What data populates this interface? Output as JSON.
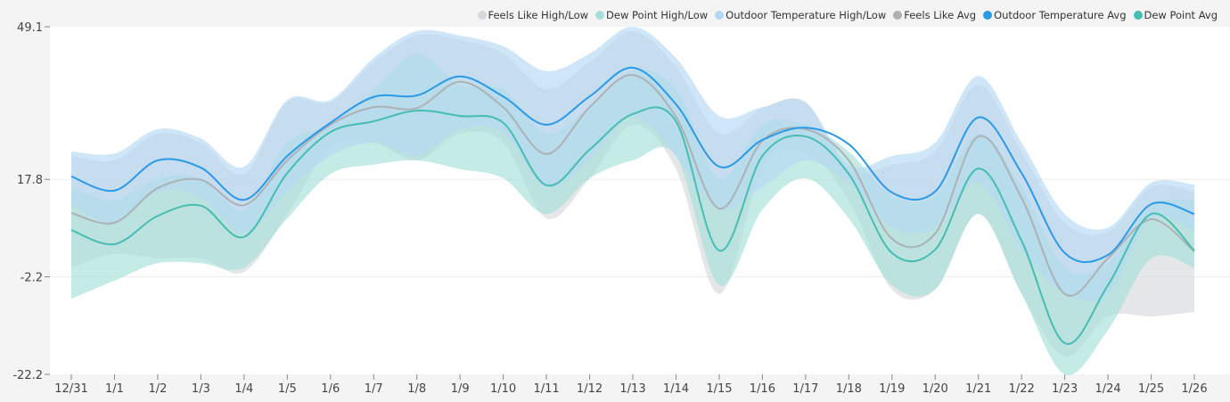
{
  "chart_data": {
    "type": "area",
    "title": "",
    "xlabel": "",
    "ylabel": "",
    "ylim": [
      -22.2,
      49.1
    ],
    "yticks": [
      "49.1",
      "17.8",
      "-2.2",
      "-22.2"
    ],
    "ytick_values": [
      49.1,
      17.8,
      -2.2,
      -22.2
    ],
    "grid": true,
    "legend_position": "top-right",
    "categories": [
      "12/31",
      "1/1",
      "1/2",
      "1/3",
      "1/4",
      "1/5",
      "1/6",
      "1/7",
      "1/8",
      "1/9",
      "1/10",
      "1/11",
      "1/12",
      "1/13",
      "1/14",
      "1/15",
      "1/16",
      "1/17",
      "1/18",
      "1/19",
      "1/20",
      "1/21",
      "1/22",
      "1/23",
      "1/24",
      "1/25",
      "1/26"
    ],
    "bands": [
      {
        "name": "Feels Like High/Low",
        "color": "#d5d8dc",
        "high": [
          22.6,
          21.7,
          27.2,
          25.3,
          19.0,
          33.6,
          33.6,
          41.8,
          47.3,
          46.4,
          43.6,
          36.3,
          41.8,
          48.2,
          40.9,
          27.2,
          32.4,
          33.6,
          19.9,
          20.8,
          23.5,
          37.2,
          23.5,
          8.9,
          7.0,
          16.2,
          15.3
        ],
        "low": [
          -0.3,
          2.5,
          1.6,
          1.6,
          -1.2,
          10.7,
          24.4,
          25.3,
          21.7,
          27.2,
          25.3,
          9.8,
          18.0,
          29.0,
          19.9,
          -5.7,
          19.9,
          23.5,
          13.5,
          -4.8,
          -4.8,
          10.7,
          -5.7,
          -18.5,
          -10.3,
          -10.3,
          -9.4
        ]
      },
      {
        "name": "Dew Point High/Low",
        "color": "#a6e0da",
        "high": [
          16.2,
          13.5,
          18.0,
          18.0,
          11.6,
          25.3,
          29.0,
          36.3,
          43.6,
          37.2,
          36.3,
          27.2,
          32.6,
          40.0,
          36.3,
          18.0,
          29.0,
          29.0,
          23.5,
          14.4,
          14.4,
          27.2,
          16.2,
          -0.3,
          0.6,
          12.5,
          13.5
        ],
        "low": [
          -6.7,
          -3.0,
          0.6,
          0.6,
          -0.3,
          9.8,
          18.9,
          20.8,
          21.7,
          19.9,
          18.0,
          10.7,
          18.0,
          21.7,
          22.6,
          -3.9,
          11.6,
          18.0,
          9.8,
          -3.9,
          -4.8,
          10.7,
          -5.7,
          -22.2,
          -13.1,
          1.6,
          -0.3
        ]
      },
      {
        "name": "Outdoor Temperature High/Low",
        "color": "#b3d8f2",
        "high": [
          23.5,
          23.1,
          28.1,
          26.2,
          20.4,
          34.1,
          34.1,
          42.7,
          48.2,
          47.3,
          45.1,
          40.0,
          43.6,
          49.1,
          42.7,
          30.8,
          32.6,
          33.6,
          20.8,
          22.6,
          25.3,
          39.0,
          25.3,
          10.7,
          7.9,
          17.1,
          16.7
        ],
        "low": [
          12.5,
          8.9,
          15.3,
          14.0,
          6.7,
          15.3,
          22.6,
          25.3,
          22.6,
          28.1,
          27.2,
          16.2,
          21.7,
          30.8,
          22.6,
          11.6,
          16.2,
          21.7,
          17.1,
          7.9,
          7.9,
          17.1,
          3.4,
          -5.7,
          -5.7,
          9.8,
          7.0
        ]
      }
    ],
    "series": [
      {
        "name": "Feels Like Avg",
        "color": "#adb1b6",
        "values": [
          10.9,
          8.9,
          16.0,
          17.7,
          12.5,
          21.7,
          29.0,
          32.6,
          32.4,
          37.8,
          32.6,
          23.0,
          32.6,
          39.2,
          30.6,
          11.8,
          25.7,
          28.1,
          21.7,
          5.6,
          6.7,
          26.6,
          14.0,
          -5.7,
          1.6,
          9.6,
          3.0
        ]
      },
      {
        "name": "Outdoor Temperature Avg",
        "color": "#2b9ae6",
        "values": [
          18.4,
          15.5,
          21.7,
          20.2,
          13.6,
          22.6,
          29.4,
          34.7,
          35.0,
          38.9,
          34.8,
          29.0,
          34.8,
          40.7,
          33.2,
          20.4,
          25.9,
          28.4,
          25.0,
          15.1,
          15.3,
          30.5,
          19.1,
          2.7,
          2.3,
          12.7,
          10.7
        ]
      },
      {
        "name": "Dew Point Avg",
        "color": "#46bdb2",
        "values": [
          7.4,
          4.5,
          10.3,
          12.4,
          6.0,
          19.1,
          27.5,
          29.7,
          31.9,
          30.8,
          29.4,
          16.6,
          23.9,
          31.2,
          29.7,
          3.2,
          22.6,
          26.6,
          18.9,
          2.7,
          3.4,
          20.0,
          5.2,
          -15.8,
          -3.9,
          10.7,
          3.2
        ]
      }
    ]
  },
  "legend": [
    {
      "label": "Feels Like High/Low",
      "color": "#d5d8dc"
    },
    {
      "label": "Dew Point High/Low",
      "color": "#a6e0da"
    },
    {
      "label": "Outdoor Temperature High/Low",
      "color": "#b3d8f2"
    },
    {
      "label": "Feels Like Avg",
      "color": "#adb1b6"
    },
    {
      "label": "Outdoor Temperature Avg",
      "color": "#2b9ae6"
    },
    {
      "label": "Dew Point Avg",
      "color": "#46bdb2"
    }
  ]
}
